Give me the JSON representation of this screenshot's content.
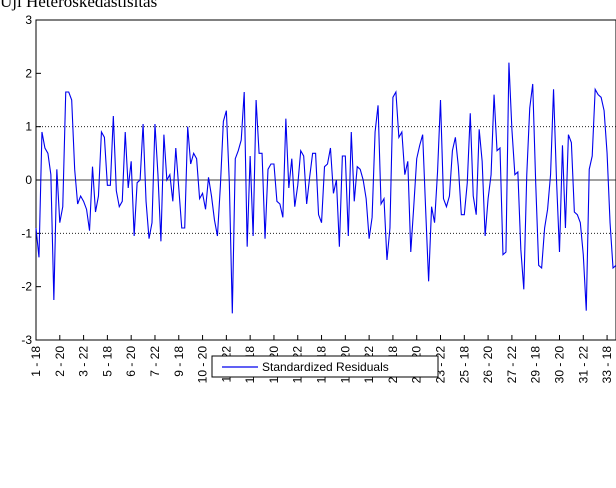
{
  "chart_data": {
    "type": "line",
    "title": "Uji Heteroskedastisitas",
    "categories": [
      "1 - 18",
      null,
      null,
      null,
      null,
      null,
      null,
      null,
      "2 - 20",
      null,
      null,
      null,
      null,
      null,
      null,
      null,
      "3 - 22",
      null,
      null,
      null,
      null,
      null,
      null,
      null,
      "5 - 18",
      null,
      null,
      null,
      null,
      null,
      null,
      null,
      "6 - 20",
      null,
      null,
      null,
      null,
      null,
      null,
      null,
      "7 - 22",
      null,
      null,
      null,
      null,
      null,
      null,
      null,
      "9 - 18",
      null,
      null,
      null,
      null,
      null,
      null,
      null,
      "10 - 20",
      null,
      null,
      null,
      null,
      null,
      null,
      null,
      "11 - 22",
      null,
      null,
      null,
      null,
      null,
      null,
      null,
      "13 - 18",
      null,
      null,
      null,
      null,
      null,
      null,
      null,
      "14 - 20",
      null,
      null,
      null,
      null,
      null,
      null,
      null,
      "15 - 22",
      null,
      null,
      null,
      null,
      null,
      null,
      null,
      "17 - 18",
      null,
      null,
      null,
      null,
      null,
      null,
      null,
      "18 - 20",
      null,
      null,
      null,
      null,
      null,
      null,
      null,
      "19 - 22",
      null,
      null,
      null,
      null,
      null,
      null,
      null,
      "21 - 18",
      null,
      null,
      null,
      null,
      null,
      null,
      null,
      "22 - 20",
      null,
      null,
      null,
      null,
      null,
      null,
      null,
      "23 - 22",
      null,
      null,
      null,
      null,
      null,
      null,
      null,
      "25 - 18",
      null,
      null,
      null,
      null,
      null,
      null,
      null,
      "26 - 20",
      null,
      null,
      null,
      null,
      null,
      null,
      null,
      "27 - 22",
      null,
      null,
      null,
      null,
      null,
      null,
      null,
      "29 - 18",
      null,
      null,
      null,
      null,
      null,
      null,
      null,
      "30 - 20",
      null,
      null,
      null,
      null,
      null,
      null,
      null,
      "31 - 22",
      null,
      null,
      null,
      null,
      null,
      null,
      null,
      "33 - 18",
      null,
      null,
      null
    ],
    "series": [
      {
        "name": "Standardized Residuals",
        "color": "#0000ee",
        "values": [
          -0.9,
          -1.45,
          0.9,
          0.6,
          0.5,
          0.1,
          -2.25,
          0.2,
          -0.8,
          -0.5,
          1.65,
          1.65,
          1.5,
          0.2,
          -0.45,
          -0.3,
          -0.4,
          -0.55,
          -0.95,
          0.25,
          -0.6,
          -0.3,
          0.9,
          0.8,
          -0.1,
          -0.1,
          1.2,
          -0.2,
          -0.5,
          -0.4,
          0.9,
          -0.15,
          0.35,
          -1.05,
          -0.05,
          0.0,
          1.05,
          -0.4,
          -1.1,
          -0.8,
          1.05,
          0.1,
          -1.15,
          0.85,
          0.0,
          0.1,
          -0.4,
          0.6,
          -0.15,
          -0.9,
          -0.9,
          1.0,
          0.3,
          0.5,
          0.4,
          -0.35,
          -0.25,
          -0.55,
          0.05,
          -0.3,
          -0.75,
          -1.05,
          -0.1,
          1.1,
          1.3,
          -0.05,
          -2.5,
          0.4,
          0.55,
          0.75,
          1.65,
          -1.25,
          0.45,
          -1.05,
          1.5,
          0.5,
          0.5,
          -1.1,
          0.2,
          0.3,
          0.3,
          -0.4,
          -0.45,
          -0.7,
          1.15,
          -0.15,
          0.4,
          -0.5,
          -0.1,
          0.55,
          0.45,
          -0.45,
          0.05,
          0.5,
          0.5,
          -0.65,
          -0.8,
          0.25,
          0.3,
          0.6,
          -0.25,
          0.0,
          -1.25,
          0.45,
          0.45,
          -1.05,
          0.9,
          -0.4,
          0.25,
          0.2,
          0.0,
          -0.35,
          -1.1,
          -0.7,
          0.9,
          1.4,
          -0.45,
          -0.35,
          -1.5,
          -0.9,
          1.55,
          1.65,
          0.8,
          0.9,
          0.1,
          0.35,
          -1.35,
          -0.5,
          0.4,
          0.65,
          0.85,
          -0.55,
          -1.9,
          -0.5,
          -0.8,
          0.15,
          1.5,
          -0.35,
          -0.5,
          -0.3,
          0.55,
          0.8,
          0.25,
          -0.65,
          -0.65,
          -0.05,
          1.25,
          -0.3,
          -0.65,
          0.95,
          0.35,
          -1.05,
          -0.35,
          0.1,
          1.6,
          0.55,
          0.6,
          -1.4,
          -1.35,
          2.2,
          0.95,
          0.1,
          0.15,
          -1.3,
          -2.05,
          0.1,
          1.35,
          1.8,
          -0.05,
          -1.6,
          -1.65,
          -0.9,
          -0.55,
          0.1,
          1.7,
          0.0,
          -1.35,
          0.65,
          -0.9,
          0.85,
          0.7,
          -0.6,
          -0.65,
          -0.8,
          -1.4,
          -2.45,
          0.2,
          0.45,
          1.7,
          1.6,
          1.55,
          1.3,
          0.5,
          -0.8,
          -1.65,
          -1.6
        ]
      }
    ],
    "ylim": [
      -3,
      3
    ],
    "yticks": [
      -3,
      -2,
      -1,
      0,
      1,
      2,
      3
    ],
    "reference_lines": [
      -1,
      1
    ],
    "zero_line": true,
    "legend": "bottom"
  }
}
